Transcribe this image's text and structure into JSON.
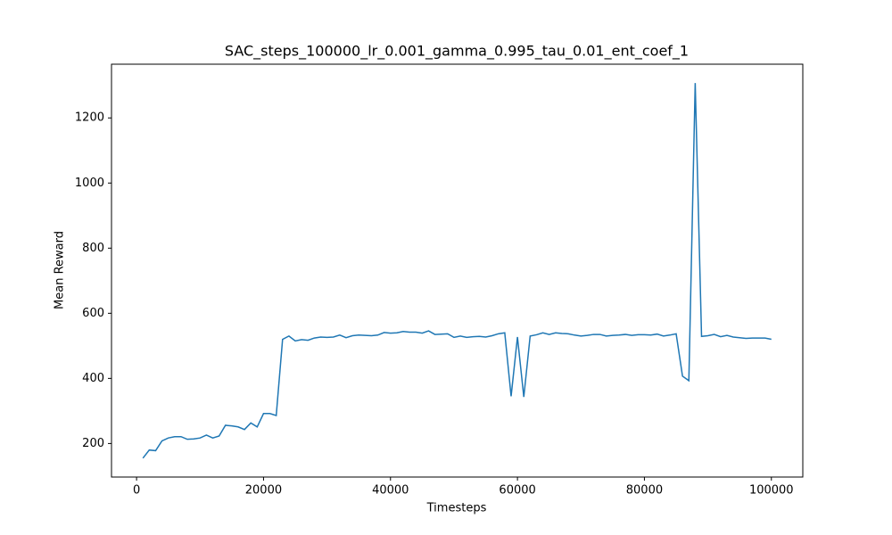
{
  "chart_data": {
    "type": "line",
    "title": "SAC_steps_100000_lr_0.001_gamma_0.995_tau_0.01_ent_coef_1",
    "x_label": "Timesteps",
    "y_label": "Mean Reward",
    "x": [
      1000,
      2000,
      3000,
      4000,
      5000,
      6000,
      7000,
      8000,
      9000,
      10000,
      11000,
      12000,
      13000,
      14000,
      15000,
      16000,
      17000,
      18000,
      19000,
      20000,
      21000,
      22000,
      23000,
      24000,
      25000,
      26000,
      27000,
      28000,
      29000,
      30000,
      31000,
      32000,
      33000,
      34000,
      35000,
      36000,
      37000,
      38000,
      39000,
      40000,
      41000,
      42000,
      43000,
      44000,
      45000,
      46000,
      47000,
      48000,
      49000,
      50000,
      51000,
      52000,
      53000,
      54000,
      55000,
      56000,
      57000,
      58000,
      59000,
      60000,
      61000,
      62000,
      63000,
      64000,
      65000,
      66000,
      67000,
      68000,
      69000,
      70000,
      71000,
      72000,
      73000,
      74000,
      75000,
      76000,
      77000,
      78000,
      79000,
      80000,
      81000,
      82000,
      83000,
      84000,
      85000,
      86000,
      87000,
      88000,
      89000,
      90000,
      91000,
      92000,
      93000,
      94000,
      95000,
      96000,
      97000,
      98000,
      99000,
      100000
    ],
    "series": [
      {
        "color": "#1f77b4",
        "values": [
          155,
          180,
          178,
          208,
          217,
          221,
          221,
          213,
          214,
          217,
          226,
          217,
          223,
          256,
          254,
          251,
          243,
          263,
          251,
          292,
          292,
          286,
          520,
          530,
          515,
          519,
          517,
          524,
          527,
          526,
          527,
          533,
          525,
          531,
          533,
          532,
          531,
          533,
          541,
          539,
          540,
          544,
          542,
          542,
          539,
          546,
          535,
          536,
          537,
          526,
          530,
          526,
          528,
          529,
          527,
          531,
          537,
          540,
          345,
          527,
          343,
          530,
          534,
          540,
          535,
          540,
          538,
          537,
          533,
          530,
          532,
          535,
          535,
          530,
          532,
          533,
          535,
          532,
          534,
          534,
          533,
          536,
          530,
          533,
          537,
          407,
          393,
          1307,
          529,
          531,
          535,
          528,
          532,
          527,
          525,
          523,
          524,
          524,
          524,
          520
        ]
      }
    ],
    "xlim": [
      -3950,
      104950
    ],
    "xticks": [
      0,
      20000,
      40000,
      60000,
      80000,
      100000
    ],
    "ylim": [
      97,
      1365
    ],
    "yticks": [
      200,
      400,
      600,
      800,
      1000,
      1200
    ],
    "grid": false
  }
}
